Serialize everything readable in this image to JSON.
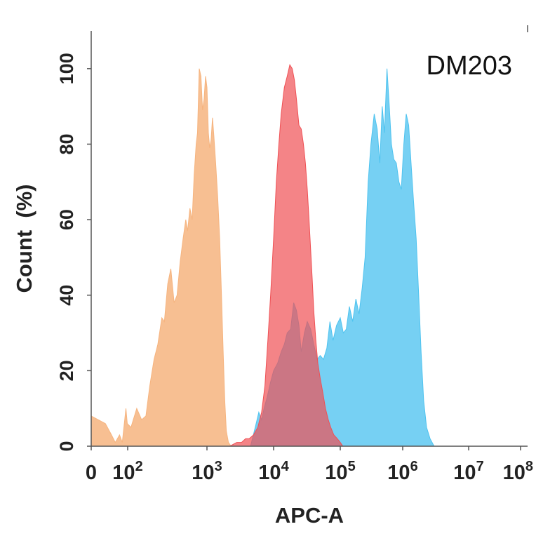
{
  "chart_data": {
    "type": "area",
    "title": "",
    "annotation": "DM203",
    "xlabel": "APC-A",
    "ylabel": "Count  (%)",
    "x_scale": "biexponential",
    "xlim": [
      0,
      100000000
    ],
    "ylim": [
      0,
      110
    ],
    "grid": false,
    "legend": "none",
    "x_ticks": [
      {
        "value": 0,
        "base": "0",
        "exp": ""
      },
      {
        "value": 100,
        "base": "10",
        "exp": "2"
      },
      {
        "value": 1000,
        "base": "10",
        "exp": "3"
      },
      {
        "value": 10000,
        "base": "10",
        "exp": "4"
      },
      {
        "value": 100000,
        "base": "10",
        "exp": "5"
      },
      {
        "value": 1000000,
        "base": "10",
        "exp": "6"
      },
      {
        "value": 10000000,
        "base": "10",
        "exp": "7"
      },
      {
        "value": 100000000,
        "base": "10",
        "exp": "8"
      }
    ],
    "y_ticks": [
      {
        "value": 0,
        "label": "0"
      },
      {
        "value": 20,
        "label": "20"
      },
      {
        "value": 40,
        "label": "40"
      },
      {
        "value": 60,
        "label": "60"
      },
      {
        "value": 80,
        "label": "80"
      },
      {
        "value": 100,
        "label": "100"
      }
    ],
    "series": [
      {
        "color": "#f6b47f",
        "opacity": 0.85,
        "points": [
          [
            0,
            8
          ],
          [
            5,
            6
          ],
          [
            12,
            3
          ],
          [
            20,
            1
          ],
          [
            35,
            3
          ],
          [
            50,
            1
          ],
          [
            65,
            6
          ],
          [
            80,
            10
          ],
          [
            95,
            6
          ],
          [
            110,
            5
          ],
          [
            130,
            10
          ],
          [
            150,
            7
          ],
          [
            170,
            8
          ],
          [
            190,
            16
          ],
          [
            215,
            23
          ],
          [
            240,
            27
          ],
          [
            270,
            34
          ],
          [
            290,
            33
          ],
          [
            320,
            43
          ],
          [
            350,
            47
          ],
          [
            385,
            38
          ],
          [
            420,
            40
          ],
          [
            460,
            49
          ],
          [
            500,
            55
          ],
          [
            540,
            60
          ],
          [
            570,
            57
          ],
          [
            610,
            63
          ],
          [
            650,
            60
          ],
          [
            690,
            72
          ],
          [
            730,
            80
          ],
          [
            760,
            83
          ],
          [
            800,
            100
          ],
          [
            840,
            98
          ],
          [
            880,
            89
          ],
          [
            920,
            92
          ],
          [
            960,
            98
          ],
          [
            1000,
            95
          ],
          [
            1050,
            83
          ],
          [
            1100,
            79
          ],
          [
            1150,
            81
          ],
          [
            1210,
            87
          ],
          [
            1270,
            82
          ],
          [
            1350,
            75
          ],
          [
            1450,
            66
          ],
          [
            1550,
            55
          ],
          [
            1650,
            40
          ],
          [
            1750,
            25
          ],
          [
            1850,
            12
          ],
          [
            1950,
            4
          ],
          [
            2100,
            1
          ],
          [
            2300,
            0
          ]
        ]
      },
      {
        "color": "#4fc3ef",
        "opacity": 0.78,
        "points": [
          [
            4500,
            0
          ],
          [
            5300,
            5
          ],
          [
            6000,
            9
          ],
          [
            6600,
            7
          ],
          [
            7200,
            10
          ],
          [
            8000,
            13
          ],
          [
            9000,
            17
          ],
          [
            10000,
            20
          ],
          [
            11500,
            22
          ],
          [
            13000,
            25
          ],
          [
            14500,
            27
          ],
          [
            16000,
            30
          ],
          [
            18000,
            31
          ],
          [
            20000,
            38
          ],
          [
            22000,
            36
          ],
          [
            24000,
            32
          ],
          [
            26000,
            25
          ],
          [
            29000,
            30
          ],
          [
            32000,
            33
          ],
          [
            36000,
            31
          ],
          [
            40000,
            27
          ],
          [
            45000,
            23
          ],
          [
            50000,
            24
          ],
          [
            56000,
            23
          ],
          [
            63000,
            26
          ],
          [
            70000,
            33
          ],
          [
            78000,
            28
          ],
          [
            88000,
            32
          ],
          [
            100000,
            34
          ],
          [
            112000,
            30
          ],
          [
            125000,
            31
          ],
          [
            140000,
            37
          ],
          [
            158000,
            33
          ],
          [
            178000,
            39
          ],
          [
            200000,
            35
          ],
          [
            225000,
            42
          ],
          [
            250000,
            50
          ],
          [
            280000,
            70
          ],
          [
            310000,
            80
          ],
          [
            350000,
            88
          ],
          [
            390000,
            84
          ],
          [
            430000,
            75
          ],
          [
            470000,
            90
          ],
          [
            510000,
            83
          ],
          [
            560000,
            100
          ],
          [
            610000,
            90
          ],
          [
            660000,
            80
          ],
          [
            720000,
            76
          ],
          [
            790000,
            75
          ],
          [
            870000,
            70
          ],
          [
            950000,
            68
          ],
          [
            1040000,
            80
          ],
          [
            1130000,
            88
          ],
          [
            1230000,
            85
          ],
          [
            1340000,
            75
          ],
          [
            1460000,
            65
          ],
          [
            1600000,
            55
          ],
          [
            1750000,
            40
          ],
          [
            1900000,
            25
          ],
          [
            2080000,
            12
          ],
          [
            2300000,
            5
          ],
          [
            2600000,
            2
          ],
          [
            3000000,
            0
          ]
        ]
      },
      {
        "color": "#ef5054",
        "opacity": 0.7,
        "points": [
          [
            2200,
            0
          ],
          [
            2800,
            1
          ],
          [
            3300,
            1
          ],
          [
            3800,
            2
          ],
          [
            4300,
            2
          ],
          [
            5000,
            3
          ],
          [
            5800,
            5
          ],
          [
            6600,
            9
          ],
          [
            7400,
            16
          ],
          [
            8200,
            28
          ],
          [
            9000,
            40
          ],
          [
            10000,
            55
          ],
          [
            11000,
            70
          ],
          [
            12000,
            80
          ],
          [
            13000,
            88
          ],
          [
            14500,
            95
          ],
          [
            16000,
            98
          ],
          [
            17500,
            101
          ],
          [
            19000,
            100
          ],
          [
            20500,
            97
          ],
          [
            22000,
            92
          ],
          [
            24000,
            85
          ],
          [
            26000,
            84
          ],
          [
            28000,
            80
          ],
          [
            30000,
            75
          ],
          [
            32000,
            68
          ],
          [
            34000,
            60
          ],
          [
            36000,
            52
          ],
          [
            38000,
            44
          ],
          [
            40000,
            36
          ],
          [
            43000,
            28
          ],
          [
            46000,
            22
          ],
          [
            50000,
            18
          ],
          [
            55000,
            14
          ],
          [
            60000,
            10
          ],
          [
            66000,
            7
          ],
          [
            72000,
            5
          ],
          [
            80000,
            3
          ],
          [
            90000,
            2
          ],
          [
            100000,
            1
          ],
          [
            110000,
            0
          ]
        ]
      }
    ]
  }
}
